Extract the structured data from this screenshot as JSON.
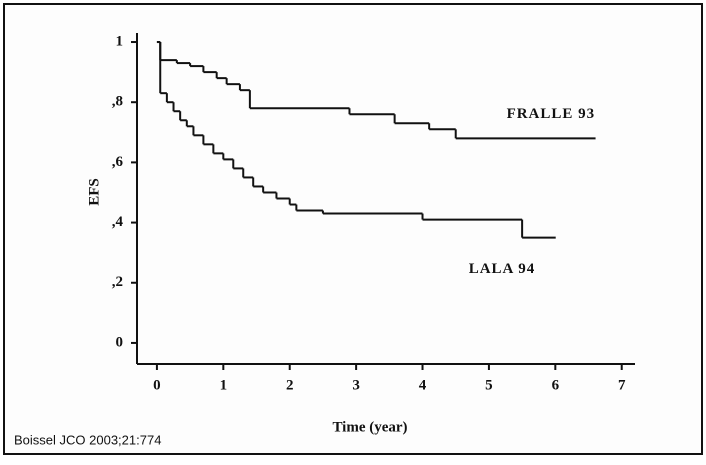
{
  "chart_data": {
    "type": "step",
    "xlabel": "Time (year)",
    "ylabel": "EFS",
    "note": "Boissel JCO 2003;21:774",
    "xlim": [
      -0.3,
      7.2
    ],
    "ylim": [
      -0.07,
      1.03
    ],
    "xticks": [
      0,
      1,
      2,
      3,
      4,
      5,
      6,
      7
    ],
    "yticks": [
      0,
      {
        "value": 0.2,
        "label": ",2"
      },
      {
        "value": 0.4,
        "label": ",4"
      },
      {
        "value": 0.6,
        "label": ",6"
      },
      {
        "value": 0.8,
        "label": ",8"
      },
      1
    ],
    "series": [
      {
        "name": "FRALLE 93",
        "color": "#111111",
        "x": [
          0,
          0.05,
          0.3,
          0.5,
          0.7,
          0.9,
          1.05,
          1.25,
          1.4,
          2.9,
          3.58,
          4.1,
          4.5,
          6.6
        ],
        "values": [
          1,
          0.94,
          0.93,
          0.92,
          0.9,
          0.88,
          0.86,
          0.84,
          0.78,
          0.76,
          0.73,
          0.71,
          0.68,
          0.68
        ]
      },
      {
        "name": "LALA 94",
        "color": "#111111",
        "x": [
          0,
          0.05,
          0.15,
          0.25,
          0.35,
          0.45,
          0.55,
          0.7,
          0.85,
          1.0,
          1.15,
          1.3,
          1.45,
          1.6,
          1.8,
          2.0,
          2.1,
          2.5,
          4.0,
          5.5,
          6.0
        ],
        "values": [
          1,
          0.83,
          0.8,
          0.77,
          0.74,
          0.72,
          0.69,
          0.66,
          0.63,
          0.61,
          0.58,
          0.55,
          0.52,
          0.5,
          0.48,
          0.46,
          0.44,
          0.43,
          0.41,
          0.35,
          0.35
        ]
      }
    ]
  }
}
